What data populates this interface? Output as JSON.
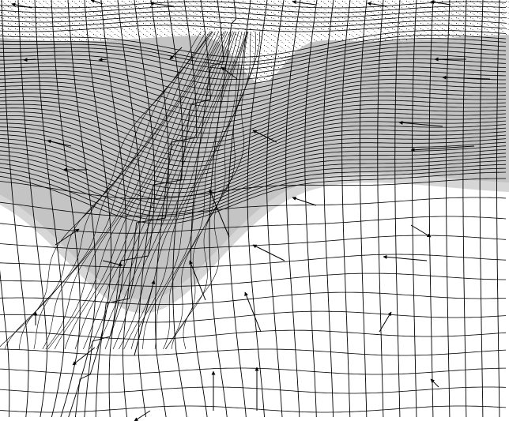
{
  "figure": {
    "caption": "",
    "layers": [
      {
        "name": "top-stippled-layer",
        "fill": "#ffffff",
        "pattern": "stipple"
      },
      {
        "name": "gray-layer",
        "fill": "#c4c4c4"
      },
      {
        "name": "halo-band",
        "fill": "#d6d6d6"
      },
      {
        "name": "white-substrate",
        "fill": "#ffffff"
      },
      {
        "name": "plume-core",
        "fill": "#bdbdbd"
      }
    ],
    "colors": {
      "background": "#ffffff",
      "line": "#000000",
      "gray_layer": "#c4c4c4",
      "halo": "#d6d6d6",
      "plume": "#bdbdbd"
    },
    "features": [
      "deformed-mesh-grid",
      "velocity-arrows",
      "sinking-plume"
    ]
  }
}
